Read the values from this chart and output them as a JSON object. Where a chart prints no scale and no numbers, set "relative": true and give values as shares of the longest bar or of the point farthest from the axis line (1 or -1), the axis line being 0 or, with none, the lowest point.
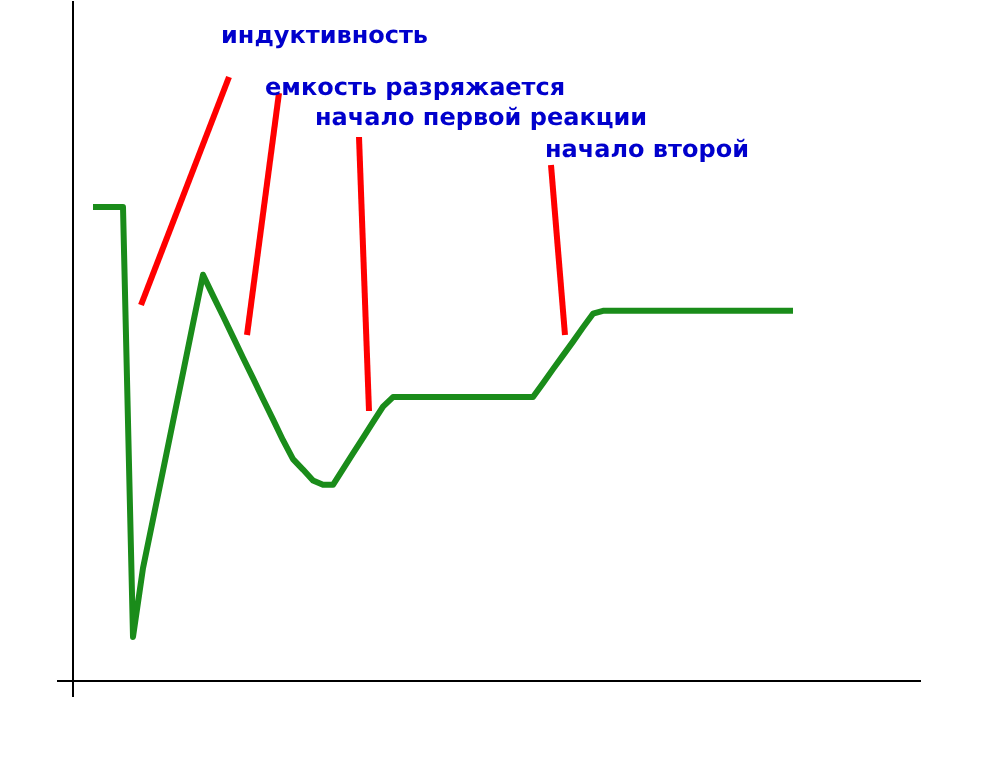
{
  "chart_data": {
    "type": "line",
    "relative": true,
    "categories": [
      null,
      null,
      null,
      null,
      null,
      null,
      null,
      null,
      null,
      null,
      null,
      null,
      null,
      null,
      null,
      null,
      null,
      null,
      null,
      null,
      null,
      null,
      null,
      null,
      null,
      null,
      null,
      null,
      null,
      null,
      null,
      null,
      null,
      null,
      null,
      null,
      null,
      null,
      null,
      null,
      null,
      null,
      null,
      null,
      null,
      null,
      null,
      null,
      null,
      null,
      null,
      null,
      null,
      null,
      null,
      null,
      null,
      null,
      null,
      null,
      null,
      null,
      null,
      null,
      null,
      null,
      null,
      null,
      null,
      null,
      null
    ],
    "series": [
      {
        "color": "#1a8c1a",
        "values": [
          1.0,
          1.0,
          1.0,
          1.0,
          0.093,
          0.238,
          0.341,
          0.444,
          0.547,
          0.65,
          0.754,
          0.857,
          0.813,
          0.77,
          0.726,
          0.682,
          0.639,
          0.595,
          0.552,
          0.508,
          0.468,
          0.446,
          0.423,
          0.414,
          0.414,
          0.447,
          0.48,
          0.513,
          0.546,
          0.579,
          0.599,
          0.599,
          0.599,
          0.599,
          0.599,
          0.599,
          0.599,
          0.599,
          0.599,
          0.599,
          0.599,
          0.599,
          0.599,
          0.599,
          0.599,
          0.628,
          0.658,
          0.687,
          0.716,
          0.746,
          0.775,
          0.781,
          0.781,
          0.781,
          0.781,
          0.781,
          0.781,
          0.781,
          0.781,
          0.781,
          0.781,
          0.781,
          0.781,
          0.781,
          0.781,
          0.781,
          0.781,
          0.781,
          0.781,
          0.781,
          0.781
        ]
      }
    ],
    "tick_labels": false,
    "grid": false,
    "marker": "none",
    "line_style": "solid",
    "annotations": [
      "индуктивность",
      "емкость разряжается",
      "начало первой реакции",
      "начало второй"
    ]
  }
}
